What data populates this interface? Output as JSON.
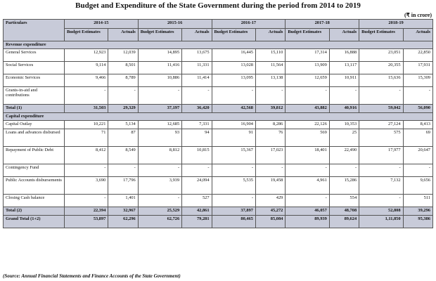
{
  "title": "Budget and Expenditure of the State Government during the period from 2014 to 2019",
  "unit": "(₹ in crore)",
  "header": {
    "particulars": "Particulars",
    "years": [
      "2014-15",
      "2015-16",
      "2016-17",
      "2017-18",
      "2018-19"
    ],
    "budget_estimates": "Budget Estimates",
    "actuals": "Actuals"
  },
  "sections": {
    "revenue": "Revenue expenditure",
    "capital": "Capital expenditure"
  },
  "revenue_rows": [
    {
      "label": "General Services",
      "values": [
        "12,923",
        "12,039",
        "14,895",
        "13,675",
        "16,445",
        "15,110",
        "17,314",
        "16,888",
        "23,051",
        "22,850"
      ]
    },
    {
      "label": "Social Services",
      "values": [
        "9,114",
        "8,501",
        "11,416",
        "11,331",
        "13,028",
        "11,564",
        "13,909",
        "13,117",
        "20,355",
        "17,931"
      ]
    },
    {
      "label": "Economic Services",
      "values": [
        "9,466",
        "8,789",
        "10,886",
        "11,414",
        "13,095",
        "13,138",
        "12,659",
        "10,911",
        "15,636",
        "15,309"
      ]
    },
    {
      "label": "Grants-in-aid and contributions",
      "values": [
        "-",
        "-",
        "-",
        "-",
        "-",
        "-",
        "-",
        "-",
        "-",
        "-"
      ]
    }
  ],
  "total1": {
    "label": "Total (1)",
    "values": [
      "31,503",
      "29,329",
      "37,197",
      "36,420",
      "42,568",
      "39,812",
      "43,882",
      "40,916",
      "59,042",
      "56,090"
    ]
  },
  "capital_rows": [
    {
      "label": "Capital Outlay",
      "values": [
        "10,221",
        "5,134",
        "12,685",
        "7,331",
        "16,904",
        "8,286",
        "22,126",
        "10,353",
        "27,124",
        "8,413"
      ]
    },
    {
      "label": "Loans and advances disbursed",
      "values": [
        "71",
        "87",
        "93",
        "94",
        "91",
        "76",
        "569",
        "25",
        "575",
        "69"
      ]
    },
    {
      "label": "Repayment of Public Debt",
      "values": [
        "8,412",
        "8,549",
        "8,812",
        "10,815",
        "15,367",
        "17,023",
        "18,401",
        "22,490",
        "17,977",
        "20,647"
      ]
    },
    {
      "label": "Contingency Fund",
      "values": [
        "-",
        "-",
        "-",
        "-",
        "-",
        "-",
        "-",
        "-",
        "-",
        "-"
      ]
    },
    {
      "label": "Public Accounts disbursements",
      "values": [
        "3,690",
        "17,796",
        "3,939",
        "24,094",
        "5,535",
        "19,458",
        "4,961",
        "15,286",
        "7,132",
        "9,656"
      ]
    },
    {
      "label": "Closing Cash balance",
      "values": [
        "-",
        "1,401",
        "-",
        "527",
        "-",
        "429",
        "-",
        "554",
        "-",
        "511"
      ]
    }
  ],
  "total2": {
    "label": "Total (2)",
    "values": [
      "22,394",
      "32,967",
      "25,529",
      "42,861",
      "37,897",
      "45,272",
      "46,057",
      "48,708",
      "52,808",
      "39,296"
    ]
  },
  "grand_total": {
    "label": "Grand Total (1+2)",
    "values": [
      "53,897",
      "62,296",
      "62,726",
      "79,281",
      "80,465",
      "85,084",
      "89,939",
      "89,624",
      "1,11,850",
      "95,386"
    ]
  },
  "source": "(Source: Annual Financial Statements and Finance Accounts of the State Government)"
}
